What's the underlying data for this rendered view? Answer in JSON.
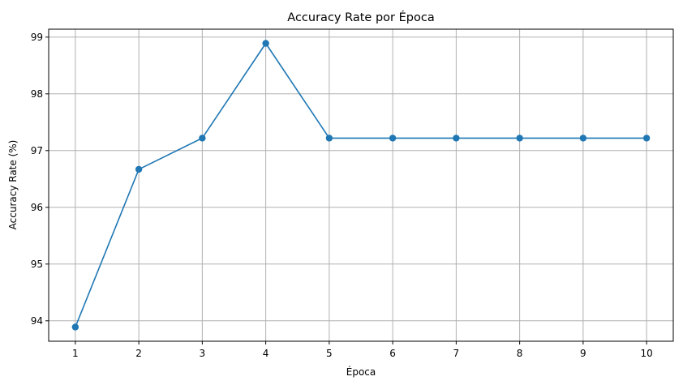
{
  "chart_data": {
    "type": "line",
    "title": "Accuracy Rate por Época",
    "xlabel": "Época",
    "ylabel": "Accuracy Rate (%)",
    "x": [
      1,
      2,
      3,
      4,
      5,
      6,
      7,
      8,
      9,
      10
    ],
    "series": [
      {
        "values": [
          93.89,
          96.67,
          97.22,
          98.89,
          97.22,
          97.22,
          97.22,
          97.22,
          97.22,
          97.22
        ],
        "color": "#1f77b4",
        "marker": "circle"
      }
    ],
    "xlim": [
      0.58,
      10.42
    ],
    "ylim": [
      93.64,
      99.14
    ],
    "xticks": [
      1,
      2,
      3,
      4,
      5,
      6,
      7,
      8,
      9,
      10
    ],
    "yticks": [
      94,
      95,
      96,
      97,
      98,
      99
    ],
    "grid": true,
    "grid_color": "#b0b0b0"
  }
}
